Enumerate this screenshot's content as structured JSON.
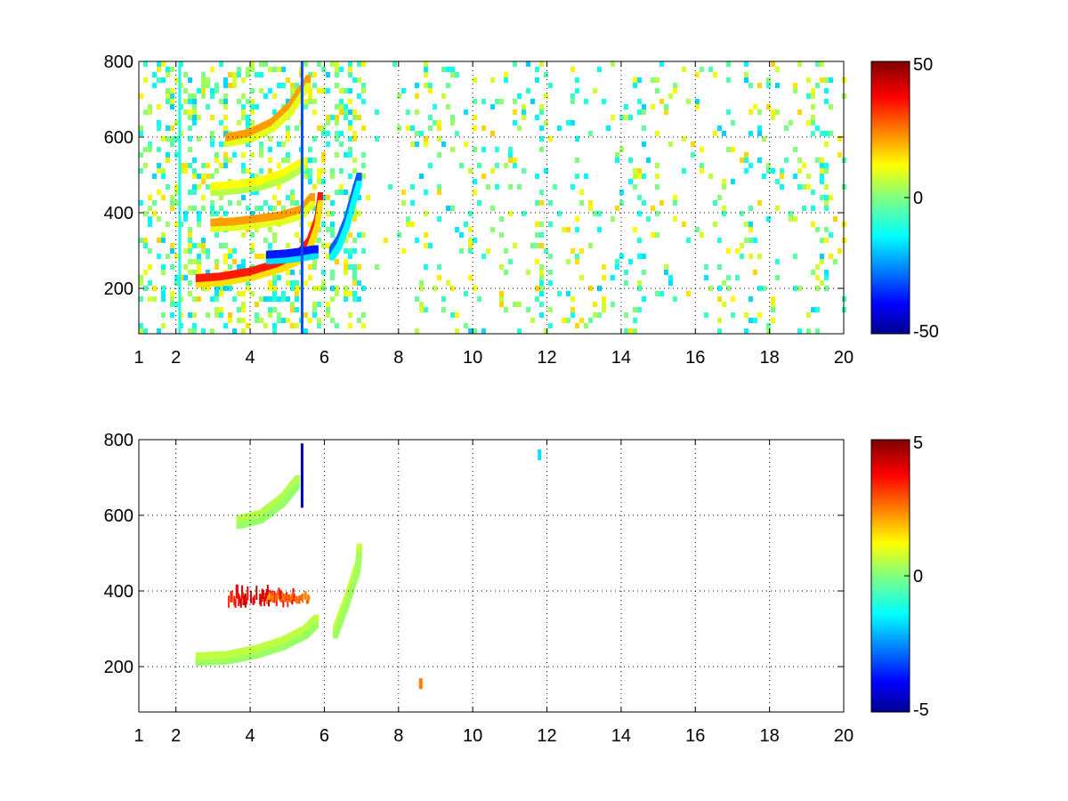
{
  "chart_data": [
    {
      "type": "heatmap",
      "xlim": [
        1,
        20
      ],
      "ylim": [
        80,
        800
      ],
      "x_ticks": [
        "1",
        "2",
        "4",
        "6",
        "8",
        "10",
        "12",
        "14",
        "16",
        "18",
        "20"
      ],
      "x_tick_values": [
        1,
        2,
        4,
        6,
        8,
        10,
        12,
        14,
        16,
        18,
        20
      ],
      "y_ticks": [
        "200",
        "400",
        "600",
        "800"
      ],
      "y_tick_values": [
        200,
        400,
        600,
        800
      ],
      "grid": true,
      "colormap": "jet",
      "colorbar": {
        "min": -50,
        "max": 50,
        "ticks": [
          "50",
          "0",
          "-50"
        ],
        "tick_values": [
          50,
          0,
          -50
        ]
      },
      "features": [
        {
          "kind": "curve",
          "points": [
            [
              2.6,
              228
            ],
            [
              3.2,
              232
            ],
            [
              4.0,
              245
            ],
            [
              4.8,
              268
            ],
            [
              5.3,
              290
            ],
            [
              5.6,
              325
            ],
            [
              5.8,
              380
            ],
            [
              5.9,
              450
            ]
          ],
          "value": 35
        },
        {
          "kind": "curve",
          "points": [
            [
              3.0,
              375
            ],
            [
              3.6,
              378
            ],
            [
              4.2,
              385
            ],
            [
              4.9,
              395
            ],
            [
              5.4,
              410
            ],
            [
              5.7,
              445
            ]
          ],
          "value": 22
        },
        {
          "kind": "curve",
          "points": [
            [
              3.0,
              470
            ],
            [
              3.6,
              475
            ],
            [
              4.3,
              485
            ],
            [
              4.9,
              505
            ],
            [
              5.5,
              540
            ]
          ],
          "value": 12
        },
        {
          "kind": "curve",
          "points": [
            [
              3.4,
              600
            ],
            [
              4.0,
              612
            ],
            [
              4.6,
              640
            ],
            [
              5.1,
              685
            ],
            [
              5.6,
              760
            ]
          ],
          "value": 22
        },
        {
          "kind": "curve",
          "points": [
            [
              4.5,
              290
            ],
            [
              5.0,
              293
            ],
            [
              5.4,
              298
            ],
            [
              5.8,
              305
            ]
          ],
          "value": -35
        },
        {
          "kind": "curve",
          "points": [
            [
              6.2,
              300
            ],
            [
              6.4,
              330
            ],
            [
              6.6,
              380
            ],
            [
              6.8,
              450
            ],
            [
              6.95,
              500
            ]
          ],
          "value": -28
        },
        {
          "kind": "vline",
          "x": 5.4,
          "y": [
            80,
            800
          ],
          "value": -30
        },
        {
          "kind": "vline",
          "x": 2.1,
          "y": [
            80,
            800
          ],
          "value": -10
        }
      ]
    },
    {
      "type": "heatmap",
      "xlim": [
        1,
        20
      ],
      "ylim": [
        80,
        800
      ],
      "x_ticks": [
        "1",
        "2",
        "4",
        "6",
        "8",
        "10",
        "12",
        "14",
        "16",
        "18",
        "20"
      ],
      "x_tick_values": [
        1,
        2,
        4,
        6,
        8,
        10,
        12,
        14,
        16,
        18,
        20
      ],
      "y_ticks": [
        "200",
        "400",
        "600",
        "800"
      ],
      "y_tick_values": [
        200,
        400,
        600,
        800
      ],
      "grid": true,
      "colormap": "jet",
      "colorbar": {
        "min": -5,
        "max": 5,
        "ticks": [
          "5",
          "0",
          "-5"
        ],
        "tick_values": [
          5,
          0,
          -5
        ]
      },
      "features": [
        {
          "kind": "curve",
          "points": [
            [
              2.6,
              228
            ],
            [
              3.4,
              232
            ],
            [
              4.2,
              248
            ],
            [
              4.9,
              270
            ],
            [
              5.5,
              300
            ],
            [
              5.8,
              330
            ]
          ],
          "value": 0.6
        },
        {
          "kind": "curve",
          "points": [
            [
              3.7,
              590
            ],
            [
              4.3,
              605
            ],
            [
              4.9,
              650
            ],
            [
              5.3,
              700
            ]
          ],
          "value": 0.5
        },
        {
          "kind": "curve",
          "points": [
            [
              6.3,
              300
            ],
            [
              6.6,
              380
            ],
            [
              6.9,
              470
            ],
            [
              6.95,
              520
            ]
          ],
          "value": 0.7
        },
        {
          "kind": "band",
          "x": [
            3.4,
            5.2
          ],
          "y": [
            355,
            405
          ],
          "value": 4.5
        },
        {
          "kind": "band",
          "x": [
            4.4,
            5.6
          ],
          "y": [
            365,
            395
          ],
          "value": 3.0
        },
        {
          "kind": "vline",
          "x": 5.4,
          "y": [
            620,
            790
          ],
          "value": -4.5
        },
        {
          "kind": "spot",
          "x": 8.6,
          "y": 155,
          "value": 2.5
        },
        {
          "kind": "spot",
          "x": 11.8,
          "y": 760,
          "value": -1.5
        }
      ]
    }
  ]
}
